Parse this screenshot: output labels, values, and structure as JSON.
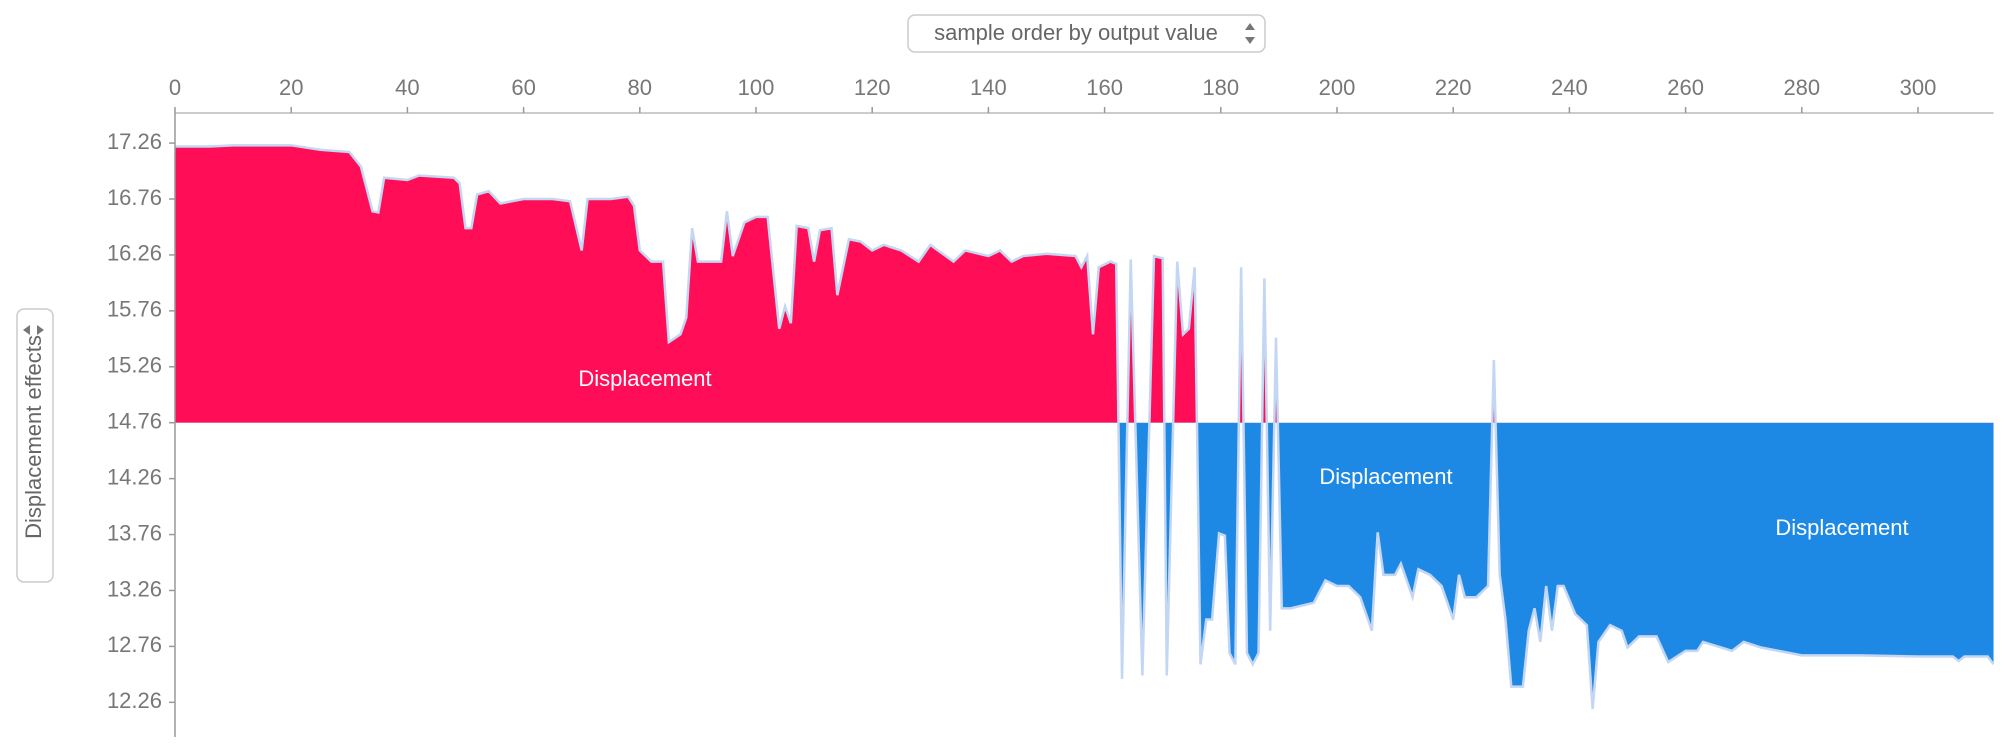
{
  "chart_data": {
    "type": "area",
    "sort_control": "sample order by output value",
    "ylabel": "Displacement effects",
    "labels": [
      "Displacement",
      "Displacement",
      "Displacement"
    ],
    "base_value": 14.76,
    "xlim": [
      0,
      313
    ],
    "ylim": [
      11.95,
      17.52
    ],
    "xticks": [
      0,
      20,
      40,
      60,
      80,
      100,
      120,
      140,
      160,
      180,
      200,
      220,
      240,
      260,
      280,
      300
    ],
    "yticks": [
      12.26,
      12.76,
      13.26,
      13.76,
      14.26,
      14.76,
      15.26,
      15.76,
      16.26,
      16.76,
      17.26
    ],
    "colors": {
      "positive": "#ff0d57",
      "negative": "#1e88e5",
      "outline": "#c3d6f3"
    },
    "x": [
      0,
      6,
      10,
      20,
      25,
      30,
      32,
      34,
      35,
      36,
      40,
      42,
      48,
      49,
      50,
      51,
      52,
      54,
      56,
      60,
      65,
      68,
      70,
      71,
      75,
      78,
      79,
      80,
      82,
      84,
      85,
      87,
      88,
      89,
      90,
      94,
      95,
      96,
      98,
      100,
      102,
      104,
      105,
      106,
      107,
      109,
      110,
      111,
      113,
      114,
      116,
      118,
      120,
      122,
      125,
      128,
      130,
      134,
      136,
      140,
      142,
      144,
      146,
      150,
      155,
      156,
      157,
      158,
      159,
      161,
      162,
      163,
      164.5,
      166.5,
      168.5,
      170,
      170.7,
      172.5,
      173.5,
      174.5,
      175.5,
      176.5,
      177.5,
      178.5,
      179.7,
      180.7,
      181.5,
      182.5,
      183.5,
      184.5,
      185.5,
      186.5,
      187.5,
      188.5,
      189.5,
      190.5,
      192,
      196,
      198,
      200,
      202,
      204,
      206,
      207,
      208,
      210,
      211,
      213,
      214,
      216,
      218,
      220,
      221,
      222,
      224,
      226,
      227,
      228,
      229,
      230,
      232,
      233,
      234,
      235,
      236,
      237,
      238,
      239,
      241,
      243,
      244,
      245,
      247,
      249,
      250,
      252,
      255,
      257,
      260,
      262,
      263,
      268,
      270,
      273,
      276,
      280,
      290,
      300,
      306,
      307,
      308,
      312,
      313
    ],
    "values": [
      17.23,
      17.23,
      17.24,
      17.24,
      17.2,
      17.18,
      17.05,
      16.65,
      16.64,
      16.95,
      16.93,
      16.97,
      16.95,
      16.9,
      16.5,
      16.5,
      16.8,
      16.83,
      16.72,
      16.76,
      16.76,
      16.74,
      16.3,
      16.76,
      16.76,
      16.78,
      16.7,
      16.3,
      16.2,
      16.2,
      15.48,
      15.55,
      15.7,
      16.5,
      16.2,
      16.2,
      16.65,
      16.25,
      16.55,
      16.6,
      16.6,
      15.6,
      15.8,
      15.65,
      16.52,
      16.5,
      16.2,
      16.48,
      16.5,
      15.9,
      16.4,
      16.38,
      16.3,
      16.35,
      16.3,
      16.2,
      16.35,
      16.2,
      16.3,
      16.25,
      16.3,
      16.2,
      16.25,
      16.27,
      16.25,
      16.15,
      16.25,
      15.55,
      16.15,
      16.2,
      16.18,
      12.47,
      16.22,
      12.5,
      16.25,
      16.23,
      12.5,
      16.2,
      15.55,
      15.6,
      16.15,
      12.6,
      13.0,
      13.0,
      13.77,
      13.75,
      12.7,
      12.6,
      16.15,
      12.7,
      12.6,
      12.7,
      16.05,
      12.9,
      15.52,
      13.1,
      13.1,
      13.15,
      13.35,
      13.3,
      13.3,
      13.2,
      12.9,
      13.78,
      13.4,
      13.4,
      13.5,
      13.2,
      13.45,
      13.4,
      13.3,
      13.0,
      13.4,
      13.2,
      13.2,
      13.3,
      15.32,
      13.4,
      13.0,
      12.4,
      12.4,
      12.9,
      13.1,
      12.8,
      13.3,
      12.9,
      13.3,
      13.3,
      13.05,
      12.95,
      12.2,
      12.8,
      12.95,
      12.9,
      12.75,
      12.85,
      12.85,
      12.62,
      12.72,
      12.72,
      12.8,
      12.72,
      12.8,
      12.75,
      12.72,
      12.68,
      12.68,
      12.67,
      12.67,
      12.63,
      12.67,
      12.67,
      12.6
    ]
  }
}
